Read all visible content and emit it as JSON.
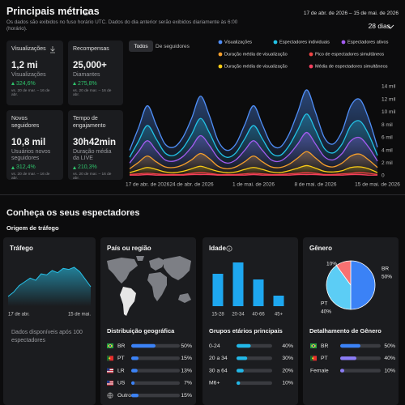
{
  "header": {
    "title": "Principais métricas",
    "subtitle": "Os dados são exibidos no fuso horário UTC. Dados do dia anterior serão exibidos diariamente às 6:00 (horário).",
    "date_range": "17 de abr. de 2026 – 15 de mai. de 2026",
    "period": "28 dias"
  },
  "metrics": [
    {
      "title": "Visualizações",
      "value": "1,2 mi",
      "label": "Visualizações",
      "change": "324,6%",
      "comparison": "vs. 20 de mar. – 16 de abr."
    },
    {
      "title": "Recompensas",
      "value": "25,000+",
      "label": "Diamantes",
      "change": "275,8%",
      "comparison": "vs. 20 de mar. – 16 de abr."
    },
    {
      "title": "Novos seguidores",
      "value": "10,8 mil",
      "label": "Usuários novos seguidores",
      "change": "312,4%",
      "comparison": "vs. 20 de mar. – 16 de abr."
    },
    {
      "title": "Tempo de engajamento",
      "value": "30h42min",
      "label": "Duração média da LIVE",
      "change": "210,3%",
      "comparison": "vs. 20 de mar. – 16 de abr."
    }
  ],
  "tabs": [
    "Todos",
    "De seguidores"
  ],
  "chart_data": [
    {
      "type": "line",
      "categories": [
        "17 de abr. de 2026",
        null,
        null,
        null,
        null,
        null,
        null,
        "24 de abr. de 2026",
        null,
        null,
        null,
        null,
        null,
        null,
        "1 de mai. de 2026",
        null,
        null,
        null,
        null,
        null,
        null,
        "8 de mai. de 2026",
        null,
        null,
        null,
        null,
        null,
        null,
        "15 de mai. de 2026"
      ],
      "series": [
        {
          "name": "Visualizações",
          "color": "#4f8ef7",
          "values": [
            4000,
            7500,
            11000,
            8000,
            5000,
            4500,
            6000,
            9000,
            12500,
            9500,
            5500,
            4000,
            5000,
            8000,
            11000,
            8000,
            5000,
            4500,
            6500,
            10000,
            13500,
            10000,
            6000,
            5000,
            7000,
            11000,
            12000,
            9000,
            4500
          ]
        },
        {
          "name": "Espectadores individuais",
          "color": "#22c3e6",
          "values": [
            2900,
            5400,
            7900,
            5800,
            3600,
            3200,
            4300,
            6500,
            9000,
            6800,
            4000,
            2900,
            3600,
            5800,
            7900,
            5800,
            3600,
            3200,
            4700,
            7200,
            9700,
            7200,
            4300,
            3600,
            5000,
            7900,
            8600,
            6500,
            3200
          ]
        },
        {
          "name": "Espectadores ativos",
          "color": "#a35cf0",
          "values": [
            2000,
            3800,
            5500,
            4000,
            2500,
            2300,
            3000,
            4500,
            6300,
            4800,
            2800,
            2000,
            2500,
            4000,
            5500,
            4000,
            2500,
            2300,
            3300,
            5000,
            6800,
            5000,
            3000,
            2500,
            3500,
            5500,
            6000,
            4500,
            2300
          ]
        },
        {
          "name": "Duração média de visualização",
          "color": "#f59e2b",
          "values": [
            1100,
            2100,
            3100,
            2200,
            1400,
            1300,
            1700,
            2500,
            3500,
            2700,
            1500,
            1100,
            1400,
            2200,
            3100,
            2200,
            1400,
            1300,
            1800,
            2800,
            3800,
            2800,
            1700,
            1400,
            2000,
            3100,
            3400,
            2500,
            1300
          ]
        },
        {
          "name": "Pico de espectadores simultâneos",
          "color": "#ef4444",
          "values": [
            200,
            300,
            400,
            300,
            200,
            200,
            200,
            400,
            500,
            400,
            200,
            200,
            200,
            300,
            400,
            300,
            200,
            200,
            300,
            400,
            500,
            400,
            200,
            200,
            300,
            400,
            500,
            400,
            200
          ]
        },
        {
          "name": "Duração média de visualização",
          "color": "#facc15",
          "values": [
            500,
            900,
            1300,
            1000,
            600,
            500,
            700,
            1100,
            1500,
            1100,
            700,
            500,
            600,
            1000,
            1300,
            1000,
            600,
            500,
            800,
            1200,
            1600,
            1200,
            700,
            600,
            800,
            1300,
            1400,
            1100,
            500
          ]
        },
        {
          "name": "Média de espectadores simultâneos",
          "color": "#f43f5e",
          "values": [
            100,
            100,
            200,
            100,
            100,
            100,
            100,
            200,
            200,
            200,
            100,
            100,
            100,
            100,
            200,
            100,
            100,
            100,
            100,
            200,
            200,
            200,
            100,
            100,
            100,
            200,
            200,
            100,
            100
          ]
        }
      ],
      "ylim": [
        0,
        14000
      ],
      "yticks": [
        0,
        {
          "value": 2000,
          "label": "2 mil"
        },
        {
          "value": 4000,
          "label": "4 mil"
        },
        {
          "value": 6000,
          "label": "6 mil"
        },
        {
          "value": 8000,
          "label": "8 mil"
        },
        {
          "value": 10000,
          "label": "10 mil"
        },
        {
          "value": 12000,
          "label": "12 mil"
        },
        {
          "value": 14000,
          "label": "14 mil"
        }
      ],
      "grid": false
    },
    {
      "type": "area",
      "title": "Tráfego",
      "categories": [
        "17 de abr.",
        null,
        null,
        null,
        null,
        null,
        null,
        null,
        null,
        null,
        null,
        null,
        null,
        null,
        null,
        "15 de mai."
      ],
      "values": [
        18,
        26,
        38,
        45,
        52,
        48,
        60,
        58,
        66,
        62,
        70,
        68,
        72,
        64,
        50,
        36
      ],
      "color": "#27c1e8",
      "note": "Dados disponíveis após 100 espectadores"
    },
    {
      "type": "bar",
      "title": "Idade",
      "categories": [
        "15-28",
        "20-34",
        "40-66",
        "45+"
      ],
      "values": [
        40,
        54,
        33,
        13
      ],
      "color": "#1ea7ef"
    },
    {
      "type": "pie",
      "title": "Gênero",
      "categories": [
        "BR",
        "PT",
        null
      ],
      "values": [
        50,
        40,
        10
      ],
      "value_labels": [
        "50%",
        "40%",
        "10%"
      ],
      "colors": [
        "#3b82f6",
        "#5ccdf5",
        "#f87171"
      ]
    }
  ],
  "audience": {
    "title": "Conheça os seus espectadores",
    "section": "Origem de tráfego",
    "country_title": "País ou região"
  },
  "geo": {
    "title": "Distribuição geográfica",
    "color": "#3b82f6",
    "rows": [
      {
        "label": "BR",
        "value": 50,
        "value_label": "50%"
      },
      {
        "label": "PT",
        "value": 15,
        "value_label": "15%"
      },
      {
        "label": "LR",
        "value": 13,
        "value_label": "13%"
      },
      {
        "label": "US",
        "value": 7,
        "value_label": "7%"
      },
      {
        "label": "Outros",
        "value": 15,
        "value_label": "15%"
      }
    ]
  },
  "age_groups": {
    "title": "Grupos etários principais",
    "color": "#22b8e8",
    "rows": [
      {
        "label": "0-24",
        "value": 40,
        "value_label": "40%"
      },
      {
        "label": "20 a 34",
        "value": 30,
        "value_label": "30%"
      },
      {
        "label": "30 a 64",
        "value": 20,
        "value_label": "20%"
      },
      {
        "label": "M6+",
        "value": 10,
        "value_label": "10%"
      }
    ]
  },
  "gender_breakdown": {
    "title": "Detalhamento de Gênero",
    "rows": [
      {
        "label": "BR",
        "value": 50,
        "value_label": "50%",
        "color": "#3b82f6"
      },
      {
        "label": "PT",
        "value": 40,
        "value_label": "40%",
        "color": "#8b7cf6"
      },
      {
        "label": "Female",
        "value": 10,
        "value_label": "10%",
        "color": "#8b7cf6"
      }
    ]
  }
}
